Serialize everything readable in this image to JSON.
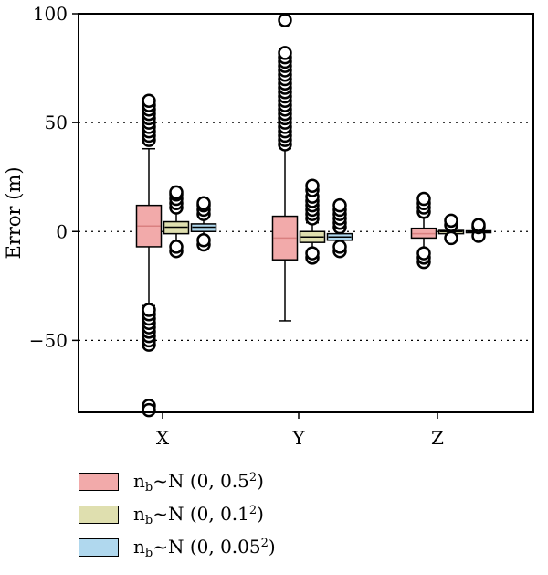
{
  "chart_data": {
    "type": "box",
    "ylabel": "Error (m)",
    "ylim": [
      -83,
      100
    ],
    "yticks": [
      -50,
      0,
      50,
      100
    ],
    "ytick_labels": [
      "−50",
      "0",
      "50",
      "100"
    ],
    "grid": "horizontal dotted at y-ticks",
    "categories": [
      "X",
      "Y",
      "Z"
    ],
    "series": [
      {
        "name": "nb~N (0, 0.5²)",
        "legend": {
          "sub": "b",
          "main": "~N (0, 0.5",
          "sup": "2",
          "close": ")"
        },
        "color": "#f2aaaa",
        "median_color": "#d98080",
        "boxes": [
          {
            "q1": -7,
            "median": 2.5,
            "q3": 12,
            "whisker_low": -34,
            "whisker_high": 38,
            "outliers": [
              -52,
              -50,
              -48,
              -46,
              -44,
              -42,
              -40,
              -38,
              -36,
              42,
              44,
              46,
              48,
              50,
              52,
              54,
              56,
              58,
              60,
              -80,
              -82
            ]
          },
          {
            "q1": -13,
            "median": -3,
            "q3": 7,
            "whisker_low": -41,
            "whisker_high": 38,
            "outliers": [
              40,
              42,
              44,
              46,
              48,
              50,
              52,
              54,
              56,
              58,
              60,
              62,
              64,
              66,
              68,
              70,
              72,
              74,
              76,
              78,
              80,
              82,
              97
            ]
          },
          {
            "q1": -3,
            "median": -1,
            "q3": 1.5,
            "whisker_low": -9,
            "whisker_high": 8,
            "outliers": [
              -14,
              -12,
              -10,
              9,
              11,
              13,
              15
            ]
          }
        ]
      },
      {
        "name": "nb~N (0, 0.1²)",
        "legend": {
          "sub": "b",
          "main": "~N (0, 0.1",
          "sup": "2",
          "close": ")"
        },
        "color": "#dfdfaf",
        "median_color": "#000000",
        "boxes": [
          {
            "q1": -1,
            "median": 2,
            "q3": 4.5,
            "whisker_low": -6,
            "whisker_high": 10,
            "outliers": [
              -9,
              -7,
              11,
              13,
              15,
              17,
              18
            ]
          },
          {
            "q1": -5,
            "median": -2.5,
            "q3": 0,
            "whisker_low": -9,
            "whisker_high": 4,
            "outliers": [
              -12,
              -10,
              6,
              8,
              10,
              12,
              14,
              16,
              19,
              21
            ]
          },
          {
            "q1": -1,
            "median": 0,
            "q3": 0.5,
            "whisker_low": -2,
            "whisker_high": 2,
            "outliers": [
              -3,
              3,
              5
            ]
          }
        ]
      },
      {
        "name": "nb~N (0, 0.05²)",
        "legend": {
          "sub": "b",
          "main": "~N (0, 0.05",
          "sup": "2",
          "close": ")"
        },
        "color": "#b0d8ee",
        "median_color": "#000000",
        "boxes": [
          {
            "q1": 0,
            "median": 2,
            "q3": 3.5,
            "whisker_low": -3,
            "whisker_high": 7,
            "outliers": [
              -6,
              -4,
              8,
              10,
              12,
              13
            ]
          },
          {
            "q1": -4,
            "median": -2.5,
            "q3": -1,
            "whisker_low": -6,
            "whisker_high": 1,
            "outliers": [
              -9,
              -7,
              2,
              4,
              6,
              8,
              10,
              12
            ]
          },
          {
            "q1": -0.5,
            "median": 0,
            "q3": 0.3,
            "whisker_low": -1,
            "whisker_high": 1,
            "outliers": [
              -2,
              2,
              3
            ]
          }
        ]
      }
    ],
    "legend_position": "bottom-left"
  }
}
